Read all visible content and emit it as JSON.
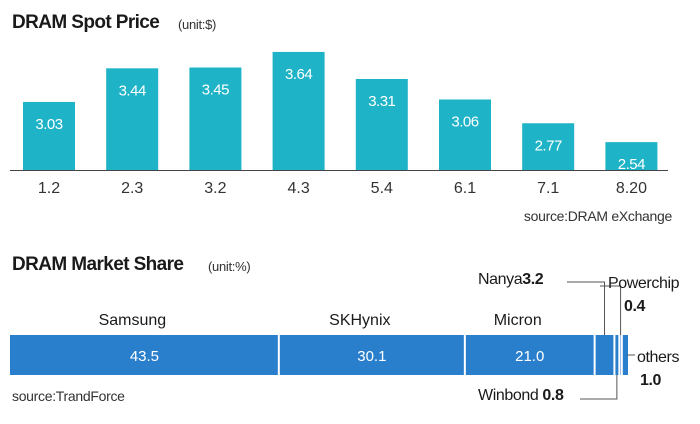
{
  "price": {
    "title": "DRAM Spot Price",
    "unit": "(unit:$)",
    "source": "source:DRAM eXchange"
  },
  "share": {
    "title": "DRAM Market Share",
    "unit": "(unit:%)",
    "source": "source:TrandForce",
    "callouts": {
      "nanya": {
        "name": "Nanya",
        "value": "3.2"
      },
      "powerchip": {
        "name": "Powerchip",
        "value": "0.4"
      },
      "winbond": {
        "name": "Winbond",
        "value": "0.8"
      },
      "others": {
        "name": "others",
        "value": "1.0"
      }
    }
  },
  "colors": {
    "price_bar": "#1fb3c7",
    "share_bar": "#2a7fcd",
    "axis": "#444444",
    "callout_line": "#555555"
  },
  "chart_data": [
    {
      "type": "bar",
      "title": "DRAM Spot Price",
      "unit": "(unit:$)",
      "categories": [
        "1.2",
        "2.3",
        "3.2",
        "4.3",
        "5.4",
        "6.1",
        "7.1",
        "8.20"
      ],
      "values": [
        3.03,
        3.44,
        3.45,
        3.64,
        3.31,
        3.06,
        2.77,
        2.54
      ],
      "value_labels": [
        "3.03",
        "3.44",
        "3.45",
        "3.64",
        "3.31",
        "3.06",
        "2.77",
        "2.54"
      ],
      "ylim": [
        2.2,
        3.7
      ],
      "grid": false
    },
    {
      "type": "bar",
      "orientation": "horizontal-stacked",
      "title": "DRAM Market Share",
      "unit": "(unit:%)",
      "series": [
        {
          "name": "Samsung",
          "value": 43.5,
          "label": "43.5"
        },
        {
          "name": "SKHynix",
          "value": 30.1,
          "label": "30.1"
        },
        {
          "name": "Micron",
          "value": 21.0,
          "label": "21.0"
        },
        {
          "name": "Nanya",
          "value": 3.2
        },
        {
          "name": "Winbond",
          "value": 0.8
        },
        {
          "name": "Powerchip",
          "value": 0.4
        },
        {
          "name": "others",
          "value": 1.0
        }
      ],
      "total": 100
    }
  ]
}
